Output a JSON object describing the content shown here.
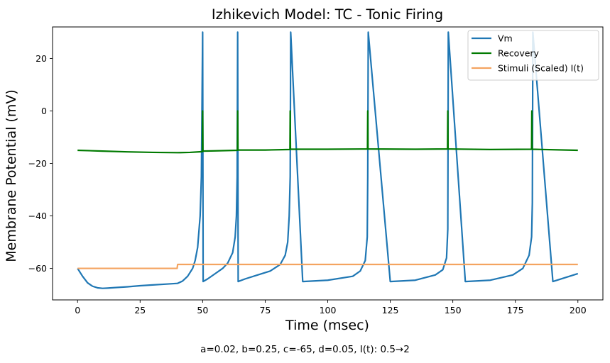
{
  "caption": "a=0.02, b=0.25, c=-65, d=0.05, I(t): 0.5→2",
  "chart_data": {
    "type": "line",
    "title": "Izhikevich Model: TC - Tonic Firing",
    "xlabel": "Time (msec)",
    "ylabel": "Membrane Potential (mV)",
    "xlim": [
      -10,
      210
    ],
    "ylim": [
      -72,
      32
    ],
    "xticks": [
      0,
      25,
      50,
      75,
      100,
      125,
      150,
      175,
      200
    ],
    "yticks": [
      -60,
      -40,
      -20,
      0,
      20
    ],
    "grid": false,
    "legend_position": "top-right",
    "series": [
      {
        "name": "Vm",
        "color": "#1f77b4",
        "x": [
          0,
          2,
          4,
          6,
          8,
          10,
          12,
          15,
          20,
          25,
          30,
          35,
          40,
          42,
          44,
          46,
          47,
          48,
          49,
          49.5,
          50,
          50.2,
          52,
          55,
          58,
          60,
          62,
          63,
          63.5,
          63.8,
          64,
          64.2,
          67,
          72,
          77,
          81,
          83,
          84,
          84.6,
          85,
          85.2,
          90,
          100,
          110,
          113,
          115,
          115.8,
          116,
          116.2,
          125,
          135,
          143,
          146,
          147.5,
          148,
          148.2,
          155,
          165,
          174,
          178,
          180.5,
          181.5,
          181.8,
          182,
          190,
          200
        ],
        "y": [
          -60,
          -63,
          -65.5,
          -66.8,
          -67.4,
          -67.6,
          -67.5,
          -67.3,
          -67,
          -66.6,
          -66.3,
          -66,
          -65.7,
          -64.8,
          -63,
          -60,
          -57,
          -52,
          -40,
          -25,
          30,
          -65,
          -64,
          -62,
          -60,
          -58,
          -54,
          -48,
          -40,
          -25,
          30,
          -65,
          -64,
          -62.5,
          -61,
          -58.5,
          -55,
          -50,
          -40,
          -25,
          30,
          -65,
          -64.5,
          -63,
          -61,
          -57,
          -48,
          -25,
          30,
          -65,
          -64.5,
          -62.5,
          -60.5,
          -56,
          -45,
          30,
          -65,
          -64.5,
          -62.5,
          -60,
          -55,
          -48,
          -35,
          30,
          -65,
          -62
        ]
      },
      {
        "name": "Recovery",
        "color": "#007a00",
        "x": [
          0,
          10,
          20,
          30,
          40,
          45,
          49.9,
          50,
          50.1,
          55,
          63.9,
          64,
          64.1,
          75,
          84.9,
          85,
          85.1,
          100,
          115.9,
          116,
          116.1,
          135,
          147.9,
          148,
          148.1,
          165,
          181.5,
          181.6,
          181.7,
          200
        ],
        "y": [
          -15,
          -15.3,
          -15.6,
          -15.8,
          -15.9,
          -15.8,
          -15.5,
          0,
          -15.3,
          -15.2,
          -15,
          0,
          -14.9,
          -14.9,
          -14.7,
          0,
          -14.6,
          -14.6,
          -14.5,
          0,
          -14.5,
          -14.6,
          -14.5,
          0,
          -14.5,
          -14.7,
          -14.6,
          0,
          -14.6,
          -15
        ]
      },
      {
        "name": "Stimuli (Scaled) I(t)",
        "color": "#f4a460",
        "x": [
          0,
          39.8,
          40,
          200
        ],
        "y": [
          -60,
          -60,
          -58.5,
          -58.5
        ]
      }
    ]
  }
}
